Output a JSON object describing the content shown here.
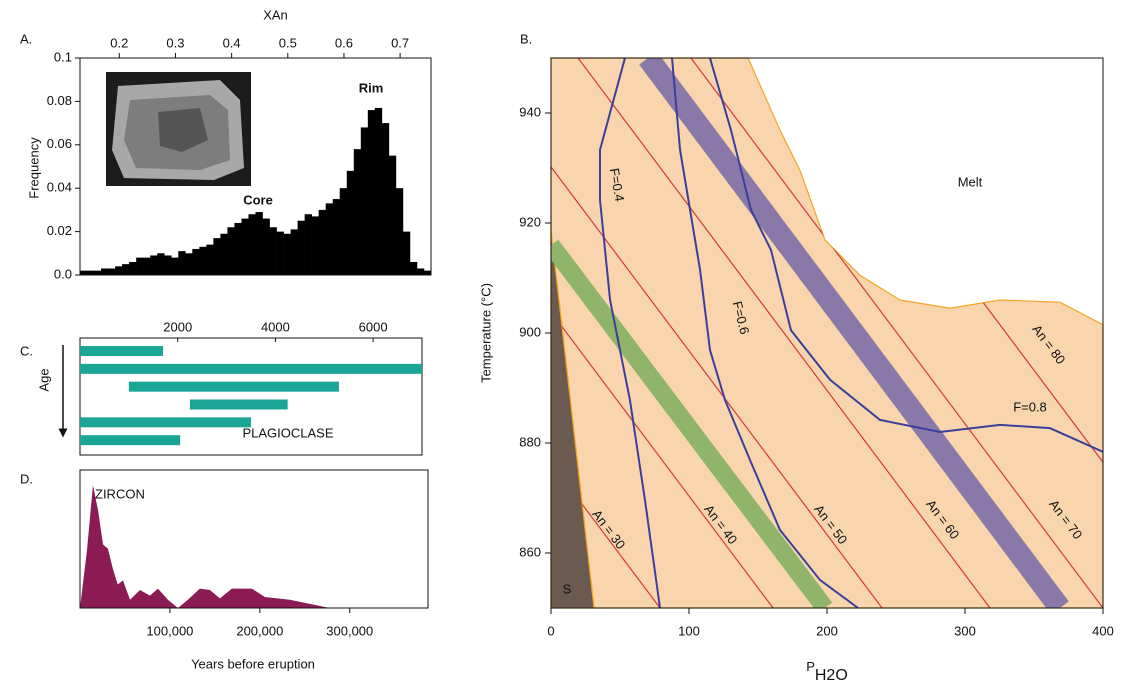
{
  "chart_data": [
    {
      "type": "histogram",
      "panel_label": "A.",
      "x_label": "XAn",
      "y_label": "Frequency",
      "bins": [
        0.13,
        0.1425,
        0.155,
        0.1675,
        0.18,
        0.1925,
        0.205,
        0.2175,
        0.23,
        0.2425,
        0.255,
        0.2675,
        0.28,
        0.2925,
        0.305,
        0.3175,
        0.33,
        0.3425,
        0.355,
        0.3675,
        0.38,
        0.3925,
        0.405,
        0.4175,
        0.43,
        0.4425,
        0.455,
        0.4675,
        0.48,
        0.4925,
        0.505,
        0.5175,
        0.53,
        0.5425,
        0.555,
        0.5675,
        0.58,
        0.5925,
        0.605,
        0.6175,
        0.63,
        0.6425,
        0.655,
        0.6675,
        0.68,
        0.6925,
        0.705,
        0.7175,
        0.73,
        0.7425,
        0.755
      ],
      "values": [
        0.002,
        0.002,
        0.002,
        0.003,
        0.003,
        0.004,
        0.005,
        0.006,
        0.008,
        0.008,
        0.009,
        0.01,
        0.009,
        0.008,
        0.011,
        0.01,
        0.012,
        0.013,
        0.014,
        0.017,
        0.019,
        0.022,
        0.024,
        0.026,
        0.028,
        0.029,
        0.026,
        0.022,
        0.02,
        0.019,
        0.021,
        0.025,
        0.028,
        0.027,
        0.03,
        0.033,
        0.035,
        0.04,
        0.048,
        0.058,
        0.068,
        0.076,
        0.077,
        0.07,
        0.055,
        0.04,
        0.02,
        0.006,
        0.003,
        0.002
      ],
      "color": "#000000",
      "xlim": [
        0.13,
        0.755
      ],
      "xticks": [
        0.2,
        0.3,
        0.4,
        0.5,
        0.6,
        0.7
      ],
      "ylim": [
        0,
        0.1
      ],
      "yticks": [
        {
          "value": 0,
          "label": "0.0"
        },
        0.02,
        0.04,
        0.06,
        0.08,
        0.1
      ],
      "annotations": [
        {
          "text": "Core",
          "color": "#1a9a4a"
        },
        {
          "text": "Rim",
          "color": "#3b3f9c"
        }
      ]
    },
    {
      "type": "range",
      "panel_label": "C.",
      "y_label": "Age",
      "label": "PLAGIOCLASE",
      "color": "#1aa596",
      "xlim": [
        0,
        7000
      ],
      "xticks": [
        2000,
        4000,
        6000
      ],
      "bars": [
        {
          "start": 0,
          "end": 1700
        },
        {
          "start": 0,
          "end": 7000
        },
        {
          "start": 1000,
          "end": 5300
        },
        {
          "start": 2250,
          "end": 4250
        },
        {
          "start": 0,
          "end": 3500
        },
        {
          "start": 0,
          "end": 2050
        }
      ]
    },
    {
      "type": "area",
      "panel_label": "D.",
      "label": "ZIRCON",
      "x_label": "Years before eruption",
      "color": "#8b1a55",
      "xlim": [
        0,
        387000
      ],
      "xticks": [
        {
          "value": 100000,
          "label": "100,000"
        },
        {
          "value": 200000,
          "label": "200,000"
        },
        {
          "value": 300000,
          "label": "300,000"
        }
      ],
      "ylim": [
        0,
        1
      ],
      "x": [
        0,
        7800,
        14400,
        20000,
        25600,
        31000,
        36700,
        42000,
        47800,
        55600,
        66700,
        77800,
        86700,
        97800,
        108900,
        120000,
        133300,
        144400,
        155600,
        168900,
        191100,
        205600,
        233300,
        277800
      ],
      "values": [
        0,
        0.42,
        0.89,
        0.71,
        0.46,
        0.43,
        0.28,
        0.17,
        0.2,
        0.06,
        0.13,
        0.09,
        0.14,
        0.06,
        0,
        0.06,
        0.14,
        0.13,
        0.07,
        0.14,
        0.14,
        0.08,
        0.06,
        0
      ]
    },
    {
      "type": "phase",
      "panel_label": "B.",
      "y_label": "Temperature (°C)",
      "x_label": "P",
      "x_label_sub": "H2O",
      "melt_label": "Melt",
      "xlim": [
        0,
        400
      ],
      "xticks": [
        0,
        100,
        200,
        300,
        400
      ],
      "ylim": [
        850,
        950
      ],
      "yticks": [
        860,
        880,
        900,
        920,
        940
      ],
      "regions": [
        {
          "color": "#f9d5ae",
          "stroke": "#f5a623",
          "x": [
            0,
            142.8,
            165.9,
            180.4,
            198.6,
            223.9,
            252.9,
            289.1,
            325.4,
            368.8,
            400,
            400,
            31.2,
            0
          ],
          "y": [
            950,
            950,
            936.9,
            929.6,
            916.9,
            910.5,
            906,
            904.5,
            906,
            905.6,
            901.5,
            850,
            850,
            918.7
          ]
        },
        {
          "name": "S",
          "color": "#6b5a4f",
          "stroke": "#f5a623",
          "x": [
            0,
            31.2,
            0
          ],
          "y": [
            918.7,
            850,
            850
          ]
        }
      ],
      "bands": [
        {
          "color": "#8fb46a",
          "x": [
            0,
            198.6
          ],
          "y": [
            916,
            850
          ]
        },
        {
          "color": "#8a78a8",
          "x": [
            70.3,
            368.8
          ],
          "y": [
            950,
            850
          ]
        }
      ],
      "series": [
        {
          "name": "An = 30",
          "color": "#d23a35",
          "x": [
            0,
            79
          ],
          "y": [
            876.4,
            850
          ]
        },
        {
          "name": "An = 40",
          "color": "#d23a35",
          "x": [
            0,
            160.9
          ],
          "y": [
            903.8,
            850
          ]
        },
        {
          "name": "An = 50",
          "color": "#d23a35",
          "x": [
            0,
            239.9
          ],
          "y": [
            930.2,
            850
          ]
        },
        {
          "name": "An = 60",
          "color": "#d23a35",
          "x": [
            19.6,
            318.1
          ],
          "y": [
            950,
            850
          ]
        },
        {
          "name": "An = 70",
          "color": "#d23a35",
          "x": [
            101.4,
            400
          ],
          "y": [
            950,
            850
          ]
        },
        {
          "name": "An = 80",
          "color": "#d23a35",
          "x": [
            180.4,
            400
          ],
          "y": [
            950,
            876.5
          ]
        },
        {
          "name": "F=0.4",
          "color": "#3b3f9c",
          "x": [
            53.6,
            35.5,
            35.5,
            42.8,
            57.2,
            68.1,
            79
          ],
          "y": [
            950,
            933.3,
            924.2,
            906,
            887.8,
            869.6,
            850
          ]
        },
        {
          "name": "F=0.6",
          "color": "#3b3f9c",
          "x": [
            87.7,
            93.5,
            108,
            115.2,
            126.1,
            144.2,
            165.9,
            194.9,
            222.5
          ],
          "y": [
            950,
            933.3,
            911.5,
            896.9,
            887.8,
            876.9,
            864.2,
            855.1,
            850
          ]
        },
        {
          "name": "F=0.8",
          "color": "#3b3f9c",
          "x": [
            115.2,
            130.4,
            144.9,
            159.4,
            173.9,
            202.2,
            238.4,
            281.9,
            325.4,
            361.6,
            400
          ],
          "y": [
            950,
            936.9,
            922.4,
            915.1,
            900.5,
            891.5,
            884.2,
            882,
            883.3,
            882.7,
            878.4
          ]
        }
      ]
    }
  ]
}
